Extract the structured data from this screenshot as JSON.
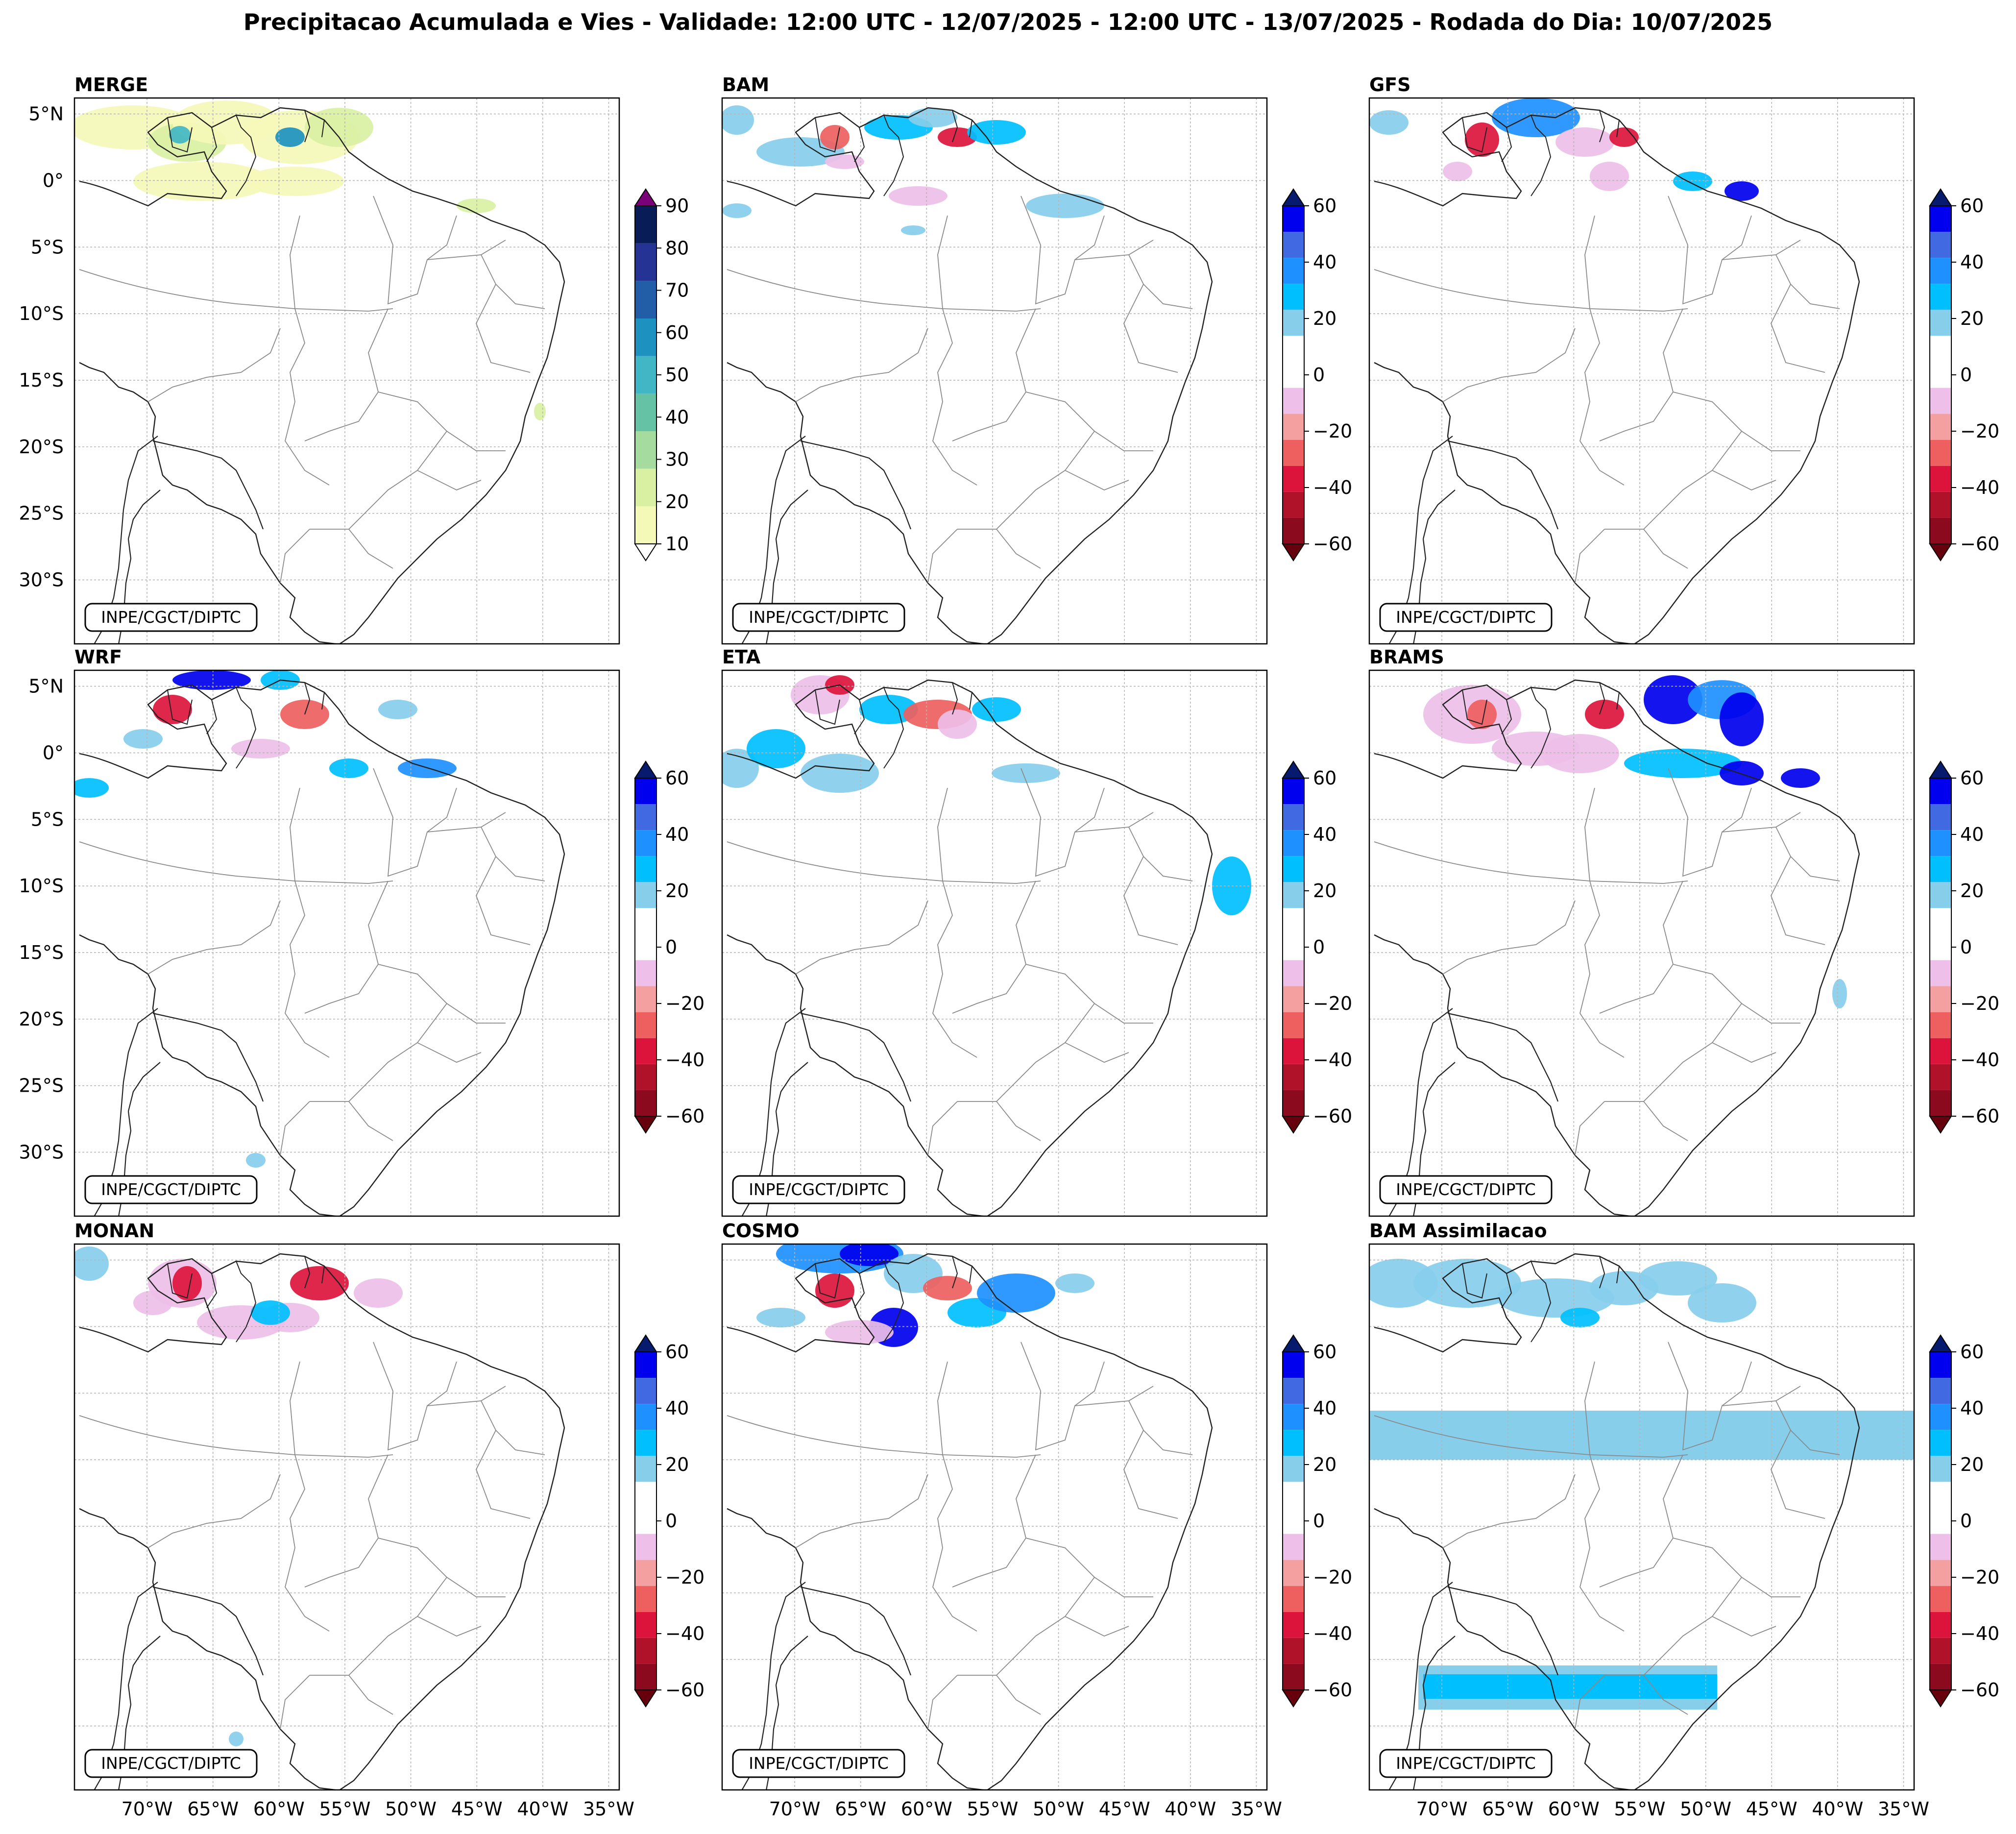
{
  "title": "Precipitacao Acumulada e Vies - Validade: 12:00 UTC - 12/07/2025 - 12:00 UTC - 13/07/2025 - Rodada do Dia: 10/07/2025",
  "credit": "INPE/CGCT/DIPTC",
  "lat_ticks": [
    "5°N",
    "0°",
    "5°S",
    "10°S",
    "15°S",
    "20°S",
    "25°S",
    "30°S"
  ],
  "lon_ticks": [
    "70°W",
    "65°W",
    "60°W",
    "55°W",
    "50°W",
    "45°W",
    "40°W",
    "35°W"
  ],
  "colorbars": {
    "precip": {
      "ticks": [
        "10",
        "20",
        "30",
        "40",
        "50",
        "60",
        "70",
        "80",
        "90"
      ],
      "under": "#ffffff",
      "over": "#7a0177",
      "colors": [
        "#f5f9b8",
        "#d9f0a3",
        "#a6dba0",
        "#66c2a4",
        "#41b6c4",
        "#1d91c0",
        "#225ea8",
        "#253494",
        "#081d58"
      ]
    },
    "bias": {
      "ticks": [
        "60",
        "40",
        "20",
        "0",
        "−20",
        "−40",
        "−60"
      ],
      "over": "#061a6e",
      "under": "#67000d",
      "colors_top_to_bottom": [
        "#0000ee",
        "#4169e1",
        "#1e90ff",
        "#00bfff",
        "#87ceeb",
        "#ffffff",
        "#ffffff",
        "#eebfe8",
        "#f4a0a0",
        "#ee6060",
        "#dc143c",
        "#b0122a",
        "#8b0a1e"
      ]
    }
  },
  "panels": [
    {
      "title": "MERGE",
      "scale": "precip"
    },
    {
      "title": "BAM",
      "scale": "bias"
    },
    {
      "title": "GFS",
      "scale": "bias"
    },
    {
      "title": "WRF",
      "scale": "bias"
    },
    {
      "title": "ETA",
      "scale": "bias"
    },
    {
      "title": "BRAMS",
      "scale": "bias"
    },
    {
      "title": "MONAN",
      "scale": "bias"
    },
    {
      "title": "COSMO",
      "scale": "bias"
    },
    {
      "title": "BAM Assimilacao",
      "scale": "bias"
    }
  ]
}
